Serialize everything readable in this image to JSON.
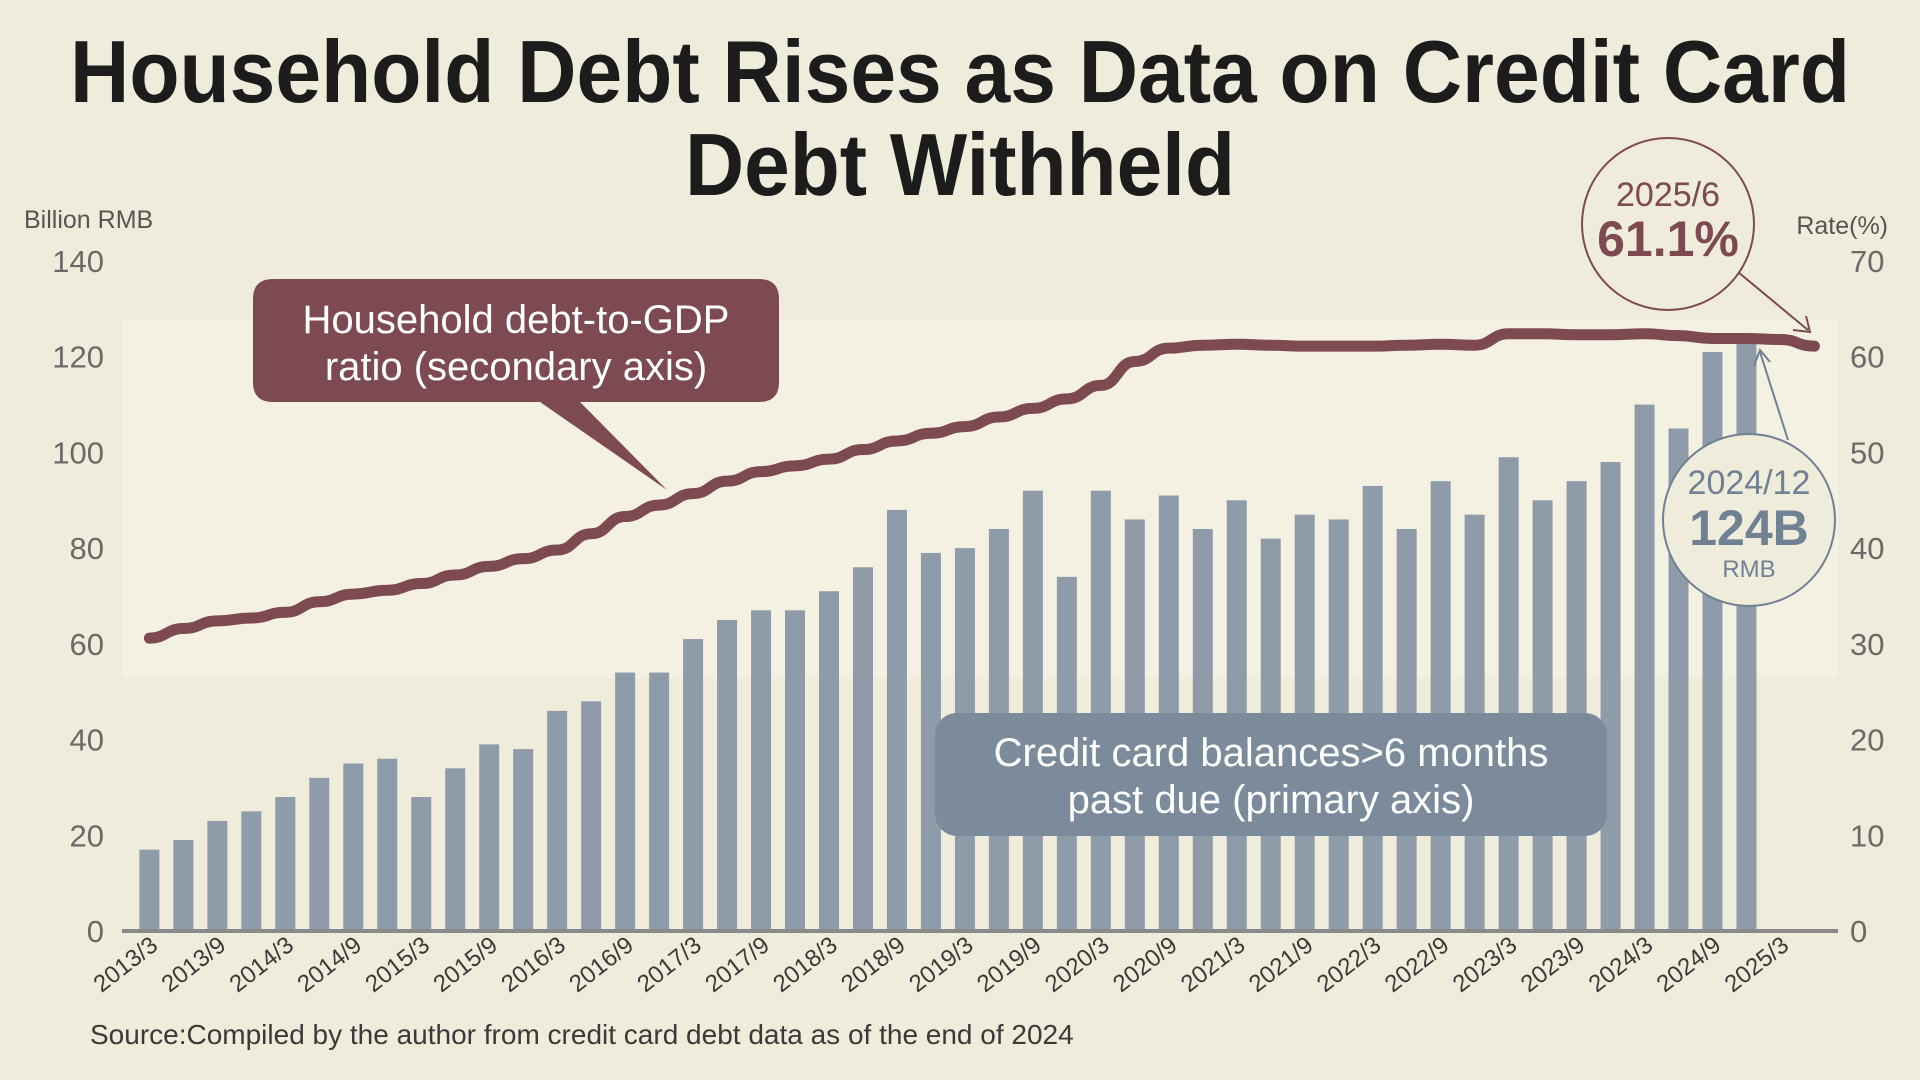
{
  "title_line1": "Household Debt Rises as Data on Credit Card",
  "title_line2": "Debt Withheld",
  "source": "Source:Compiled by the author from credit card debt data as of the end of 2024",
  "colors": {
    "background": "#f0ecdb",
    "band": "#f4f1e3",
    "line": "#7d4a51",
    "bars": "#8e9ba9",
    "callout_bars": "#7b8b9b",
    "text": "#1c1c1c",
    "axis_text": "#6a6a6a"
  },
  "chart_data": {
    "type": "bar+line",
    "title": "Household Debt Rises as Data on Credit Card Debt Withheld",
    "ylabel": "Billion RMB",
    "y2label": "Rate(%)",
    "ylim": [
      0,
      140
    ],
    "y2lim": [
      0,
      70
    ],
    "yticks": [
      "0",
      "20",
      "40",
      "60",
      "80",
      "100",
      "120",
      "140"
    ],
    "y2ticks": [
      "0",
      "10",
      "20",
      "30",
      "40",
      "50",
      "60",
      "70"
    ],
    "xtick_labels": [
      "2013/3",
      "2013/9",
      "2014/3",
      "2014/9",
      "2015/3",
      "2015/9",
      "2016/3",
      "2016/9",
      "2017/3",
      "2017/9",
      "2018/3",
      "2018/9",
      "2019/3",
      "2019/9",
      "2020/3",
      "2020/9",
      "2021/3",
      "2021/9",
      "2022/3",
      "2022/9",
      "2023/3",
      "2023/9",
      "2024/3",
      "2024/9",
      "2025/3"
    ],
    "grid": false,
    "series": [
      {
        "name": "Credit card balances>6 months past due (primary axis)",
        "type": "bar",
        "axis": "primary",
        "x": [
          "2013/3",
          "2013/6",
          "2013/9",
          "2013/12",
          "2014/3",
          "2014/6",
          "2014/9",
          "2014/12",
          "2015/3",
          "2015/6",
          "2015/9",
          "2015/12",
          "2016/3",
          "2016/6",
          "2016/9",
          "2016/12",
          "2017/3",
          "2017/6",
          "2017/9",
          "2017/12",
          "2018/3",
          "2018/6",
          "2018/9",
          "2018/12",
          "2019/3",
          "2019/6",
          "2019/9",
          "2019/12",
          "2020/3",
          "2020/6",
          "2020/9",
          "2020/12",
          "2021/3",
          "2021/6",
          "2021/9",
          "2021/12",
          "2022/3",
          "2022/6",
          "2022/9",
          "2022/12",
          "2023/3",
          "2023/6",
          "2023/9",
          "2023/12",
          "2024/3",
          "2024/6",
          "2024/9",
          "2024/12"
        ],
        "values": [
          17,
          19,
          23,
          25,
          28,
          32,
          35,
          36,
          28,
          34,
          39,
          38,
          46,
          48,
          54,
          54,
          61,
          65,
          67,
          67,
          71,
          76,
          88,
          79,
          80,
          84,
          92,
          74,
          92,
          86,
          91,
          84,
          90,
          82,
          87,
          86,
          93,
          84,
          94,
          87,
          99,
          90,
          94,
          98,
          110,
          105,
          121,
          124
        ]
      },
      {
        "name": "Household debt-to-GDP ratio (secondary axis)",
        "type": "line",
        "axis": "secondary",
        "x": [
          "2013/3",
          "2013/6",
          "2013/9",
          "2013/12",
          "2014/3",
          "2014/6",
          "2014/9",
          "2014/12",
          "2015/3",
          "2015/6",
          "2015/9",
          "2015/12",
          "2016/3",
          "2016/6",
          "2016/9",
          "2016/12",
          "2017/3",
          "2017/6",
          "2017/9",
          "2017/12",
          "2018/3",
          "2018/6",
          "2018/9",
          "2018/12",
          "2019/3",
          "2019/6",
          "2019/9",
          "2019/12",
          "2020/3",
          "2020/6",
          "2020/9",
          "2020/12",
          "2021/3",
          "2021/6",
          "2021/9",
          "2021/12",
          "2022/3",
          "2022/6",
          "2022/9",
          "2022/12",
          "2023/3",
          "2023/6",
          "2023/9",
          "2023/12",
          "2024/3",
          "2024/6",
          "2024/9",
          "2024/12",
          "2025/3",
          "2025/6"
        ],
        "values": [
          30.6,
          31.6,
          32.4,
          32.7,
          33.3,
          34.4,
          35.2,
          35.6,
          36.3,
          37.2,
          38.1,
          38.9,
          39.8,
          41.5,
          43.3,
          44.5,
          45.7,
          47.0,
          48.0,
          48.6,
          49.3,
          50.3,
          51.2,
          52.0,
          52.7,
          53.7,
          54.6,
          55.6,
          57.0,
          59.5,
          60.9,
          61.2,
          61.3,
          61.2,
          61.1,
          61.1,
          61.1,
          61.2,
          61.3,
          61.2,
          62.4,
          62.4,
          62.3,
          62.3,
          62.4,
          62.2,
          61.9,
          61.9,
          61.8,
          61.1
        ]
      }
    ],
    "callouts": {
      "line_label": [
        "Household debt-to-GDP",
        "ratio (secondary axis)"
      ],
      "bar_label": [
        "Credit card balances>6 months",
        "past due (primary axis)"
      ],
      "line_point": {
        "date": "2025/6",
        "value": "61.1%"
      },
      "bar_point": {
        "date": "2024/12",
        "value": "124B",
        "unit": "RMB"
      }
    }
  }
}
